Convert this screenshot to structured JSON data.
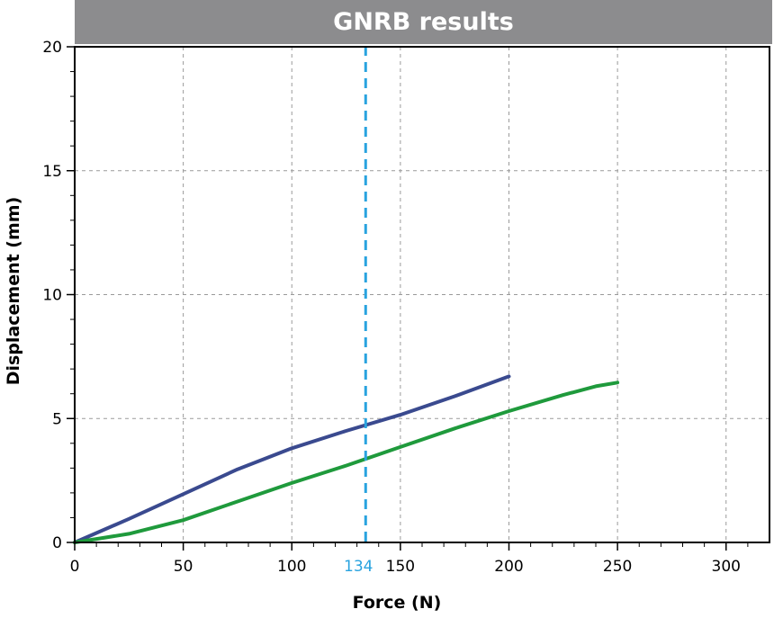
{
  "chart_data": {
    "type": "line",
    "title": "GNRB results",
    "xlabel": "Force (N)",
    "ylabel": "Displacement (mm)",
    "xlim": [
      0,
      320
    ],
    "ylim": [
      0,
      20
    ],
    "xticks": [
      0,
      50,
      100,
      150,
      200,
      250,
      300
    ],
    "yticks": [
      0,
      5,
      10,
      15,
      20
    ],
    "grid": true,
    "series": [
      {
        "color": "#3a4a8f",
        "x": [
          0,
          25,
          50,
          75,
          100,
          125,
          150,
          175,
          200
        ],
        "y": [
          0,
          0.95,
          1.95,
          2.95,
          3.8,
          4.5,
          5.15,
          5.9,
          6.7
        ]
      },
      {
        "color": "#1f9a3c",
        "x": [
          0,
          25,
          50,
          75,
          100,
          125,
          150,
          175,
          200,
          225,
          240,
          250
        ],
        "y": [
          0,
          0.35,
          0.9,
          1.65,
          2.4,
          3.1,
          3.85,
          4.6,
          5.3,
          5.95,
          6.3,
          6.45
        ]
      }
    ],
    "reference_line": {
      "x": 134,
      "label": "134",
      "color": "#29a3df"
    }
  }
}
